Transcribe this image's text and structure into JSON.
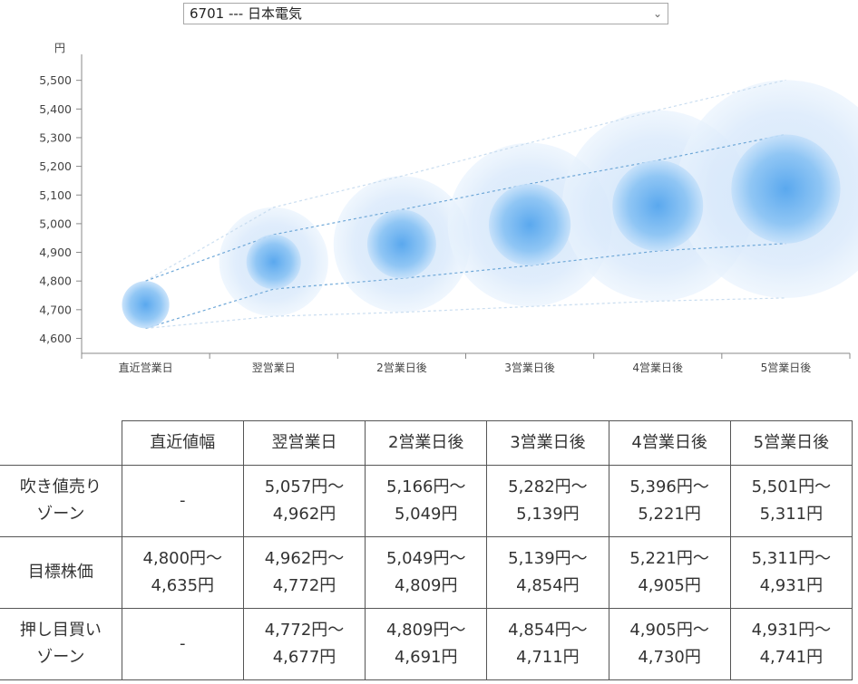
{
  "selector": {
    "value": "6701 --- 日本電気"
  },
  "icons": {
    "dropdown": "chevron-down-icon"
  },
  "chart_data": {
    "type": "bubble-range",
    "ylabel": "円",
    "ylim": [
      4600,
      5550
    ],
    "yticks": [
      4600,
      4700,
      4800,
      4900,
      5000,
      5100,
      5200,
      5300,
      5400,
      5500
    ],
    "ytick_labels": [
      "4,600",
      "4,700",
      "4,800",
      "4,900",
      "5,000",
      "5,100",
      "5,200",
      "5,300",
      "5,400",
      "5,500"
    ],
    "categories": [
      "直近営業日",
      "翌営業日",
      "2営業日後",
      "3営業日後",
      "4営業日後",
      "5営業日後"
    ],
    "sell_zone": [
      null,
      [
        5057,
        4962
      ],
      [
        5166,
        5049
      ],
      [
        5282,
        5139
      ],
      [
        5396,
        5221
      ],
      [
        5501,
        5311
      ]
    ],
    "target": [
      [
        4800,
        4635
      ],
      [
        4962,
        4772
      ],
      [
        5049,
        4809
      ],
      [
        5139,
        4854
      ],
      [
        5221,
        4905
      ],
      [
        5311,
        4931
      ]
    ],
    "buy_zone": [
      null,
      [
        4772,
        4677
      ],
      [
        4809,
        4691
      ],
      [
        4854,
        4711
      ],
      [
        4905,
        4730
      ],
      [
        4931,
        4741
      ]
    ],
    "colors": {
      "core": "#5aa8ee",
      "halo": "#dbeafb",
      "dash_inner": "#6fa8d8",
      "dash_outer": "#c9ddf0",
      "axis": "#888888"
    }
  },
  "table": {
    "headers": [
      "",
      "直近値幅",
      "翌営業日",
      "2営業日後",
      "3営業日後",
      "4営業日後",
      "5営業日後"
    ],
    "rows": [
      {
        "label": [
          "吹き値売り",
          "ゾーン"
        ],
        "cells": [
          [
            "-"
          ],
          [
            "5,057円～",
            "4,962円"
          ],
          [
            "5,166円～",
            "5,049円"
          ],
          [
            "5,282円～",
            "5,139円"
          ],
          [
            "5,396円～",
            "5,221円"
          ],
          [
            "5,501円～",
            "5,311円"
          ]
        ]
      },
      {
        "label": [
          "目標株価"
        ],
        "cells": [
          [
            "4,800円～",
            "4,635円"
          ],
          [
            "4,962円～",
            "4,772円"
          ],
          [
            "5,049円～",
            "4,809円"
          ],
          [
            "5,139円～",
            "4,854円"
          ],
          [
            "5,221円～",
            "4,905円"
          ],
          [
            "5,311円～",
            "4,931円"
          ]
        ]
      },
      {
        "label": [
          "押し目買い",
          "ゾーン"
        ],
        "cells": [
          [
            "-"
          ],
          [
            "4,772円～",
            "4,677円"
          ],
          [
            "4,809円～",
            "4,691円"
          ],
          [
            "4,854円～",
            "4,711円"
          ],
          [
            "4,905円～",
            "4,730円"
          ],
          [
            "4,931円～",
            "4,741円"
          ]
        ]
      }
    ]
  }
}
